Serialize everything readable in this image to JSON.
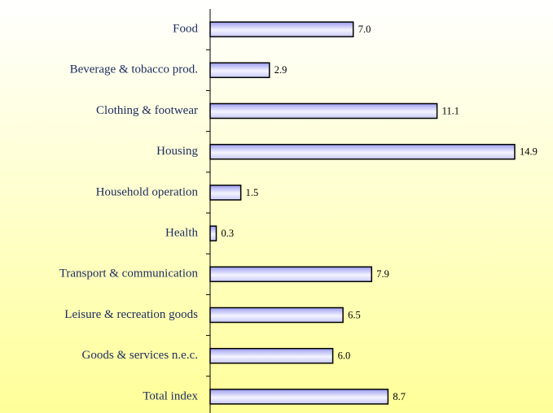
{
  "chart_data": {
    "type": "barh",
    "categories": [
      "Food",
      "Beverage & tobacco prod.",
      "Clothing & footwear",
      "Housing",
      "Household operation",
      "Health",
      "Transport & communication",
      "Leisure & recreation goods",
      "Goods & services n.e.c.",
      "Total index"
    ],
    "values": [
      7.0,
      2.9,
      11.1,
      14.9,
      1.5,
      0.3,
      7.9,
      6.5,
      6.0,
      8.7
    ],
    "value_labels": [
      "7.0",
      "2.9",
      "11.1",
      "14.9",
      "1.5",
      "0.3",
      "7.9",
      "6.5",
      "6.0",
      "8.7"
    ],
    "color": "#b8b8f8"
  }
}
